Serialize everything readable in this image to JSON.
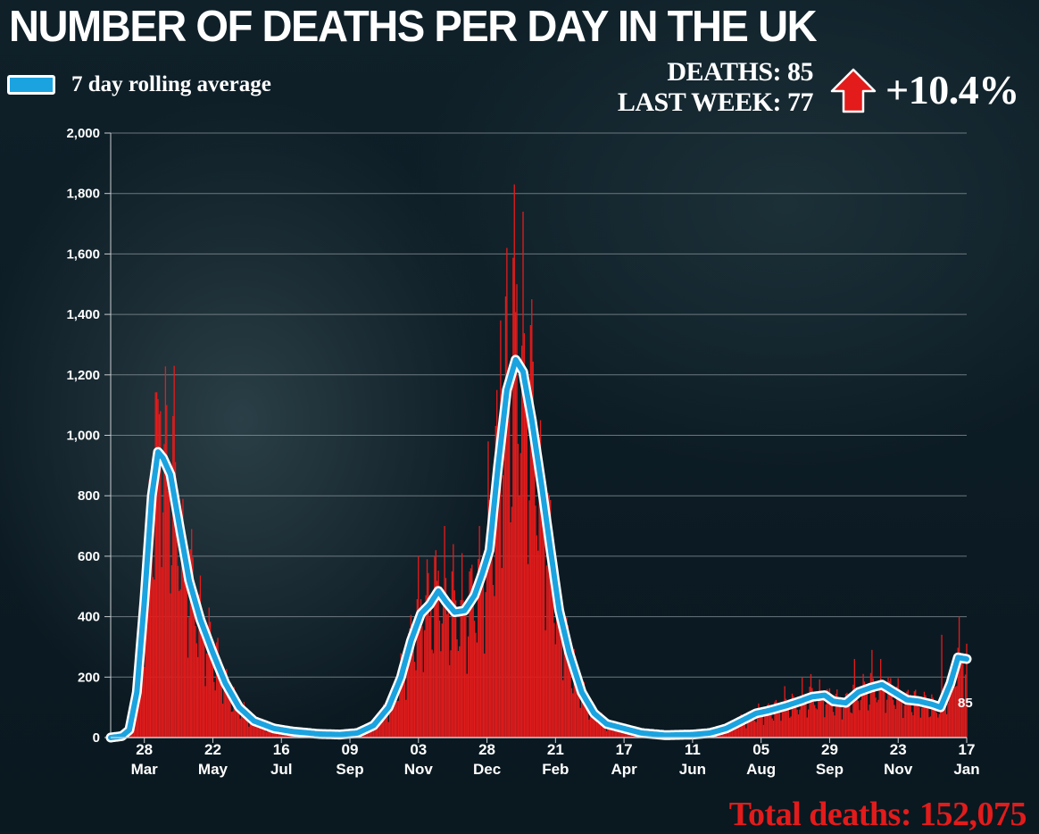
{
  "title": "NUMBER OF DEATHS PER DAY IN THE UK",
  "legend_label": "7 day rolling average",
  "stats": {
    "deaths_line": "DEATHS: 85",
    "last_week_line": "LAST WEEK: 77",
    "change": "+10.4%"
  },
  "total_deaths": "Total deaths: 152,075",
  "last_value_label": "85",
  "colors": {
    "bars": "#e31b1b",
    "line": "#1ba3e0",
    "line_outline": "#ffffff",
    "arrow": "#e31b1b",
    "total_text": "#e31b1b"
  },
  "icons": {
    "change_indicator": "red-up-arrow-icon"
  },
  "chart_data": {
    "type": "bar",
    "title": "NUMBER OF DEATHS PER DAY IN THE UK",
    "xlabel": "",
    "ylabel": "",
    "ylim": [
      0,
      2000
    ],
    "yticks": [
      "0",
      "200",
      "400",
      "600",
      "800",
      "1,000",
      "1,200",
      "1,400",
      "1,600",
      "1,800",
      "2,000"
    ],
    "yvalues": [
      0,
      200,
      400,
      600,
      800,
      1000,
      1200,
      1400,
      1600,
      1800,
      2000
    ],
    "x_start": "2020-03-01",
    "x_end": "2022-01-17",
    "xticks": [
      {
        "date": "2020-03-28",
        "day": "28",
        "month": "Mar"
      },
      {
        "date": "2020-05-22",
        "day": "22",
        "month": "May"
      },
      {
        "date": "2020-07-16",
        "day": "16",
        "month": "Jul"
      },
      {
        "date": "2020-09-09",
        "day": "09",
        "month": "Sep"
      },
      {
        "date": "2020-11-03",
        "day": "03",
        "month": "Nov"
      },
      {
        "date": "2020-12-28",
        "day": "28",
        "month": "Dec"
      },
      {
        "date": "2021-02-21",
        "day": "21",
        "month": "Feb"
      },
      {
        "date": "2021-04-17",
        "day": "17",
        "month": "Apr"
      },
      {
        "date": "2021-06-11",
        "day": "11",
        "month": "Jun"
      },
      {
        "date": "2021-08-05",
        "day": "05",
        "month": "Aug"
      },
      {
        "date": "2021-09-29",
        "day": "29",
        "month": "Sep"
      },
      {
        "date": "2021-11-23",
        "day": "23",
        "month": "Nov"
      },
      {
        "date": "2022-01-17",
        "day": "17",
        "month": "Jan"
      }
    ],
    "grid": true,
    "series": [
      {
        "name": "7 day rolling average",
        "type": "line",
        "points": [
          [
            "2020-03-01",
            0
          ],
          [
            "2020-03-10",
            5
          ],
          [
            "2020-03-16",
            25
          ],
          [
            "2020-03-22",
            150
          ],
          [
            "2020-03-28",
            450
          ],
          [
            "2020-04-03",
            800
          ],
          [
            "2020-04-08",
            945
          ],
          [
            "2020-04-12",
            925
          ],
          [
            "2020-04-18",
            870
          ],
          [
            "2020-04-26",
            680
          ],
          [
            "2020-05-03",
            520
          ],
          [
            "2020-05-12",
            390
          ],
          [
            "2020-05-22",
            280
          ],
          [
            "2020-06-01",
            180
          ],
          [
            "2020-06-12",
            100
          ],
          [
            "2020-06-24",
            55
          ],
          [
            "2020-07-10",
            30
          ],
          [
            "2020-07-25",
            20
          ],
          [
            "2020-08-15",
            12
          ],
          [
            "2020-09-01",
            10
          ],
          [
            "2020-09-15",
            15
          ],
          [
            "2020-09-28",
            40
          ],
          [
            "2020-10-10",
            100
          ],
          [
            "2020-10-20",
            200
          ],
          [
            "2020-10-28",
            320
          ],
          [
            "2020-11-05",
            410
          ],
          [
            "2020-11-12",
            440
          ],
          [
            "2020-11-19",
            485
          ],
          [
            "2020-11-25",
            450
          ],
          [
            "2020-12-02",
            415
          ],
          [
            "2020-12-10",
            420
          ],
          [
            "2020-12-18",
            470
          ],
          [
            "2020-12-24",
            540
          ],
          [
            "2020-12-30",
            620
          ],
          [
            "2021-01-06",
            900
          ],
          [
            "2021-01-13",
            1150
          ],
          [
            "2021-01-20",
            1250
          ],
          [
            "2021-01-26",
            1210
          ],
          [
            "2021-02-02",
            1050
          ],
          [
            "2021-02-10",
            830
          ],
          [
            "2021-02-17",
            620
          ],
          [
            "2021-02-24",
            420
          ],
          [
            "2021-03-04",
            280
          ],
          [
            "2021-03-14",
            150
          ],
          [
            "2021-03-24",
            80
          ],
          [
            "2021-04-03",
            45
          ],
          [
            "2021-04-17",
            30
          ],
          [
            "2021-05-01",
            15
          ],
          [
            "2021-05-20",
            8
          ],
          [
            "2021-06-11",
            10
          ],
          [
            "2021-06-25",
            15
          ],
          [
            "2021-07-08",
            30
          ],
          [
            "2021-07-20",
            55
          ],
          [
            "2021-08-01",
            80
          ],
          [
            "2021-08-12",
            90
          ],
          [
            "2021-08-25",
            105
          ],
          [
            "2021-09-05",
            120
          ],
          [
            "2021-09-15",
            135
          ],
          [
            "2021-09-25",
            140
          ],
          [
            "2021-10-02",
            120
          ],
          [
            "2021-10-12",
            115
          ],
          [
            "2021-10-22",
            150
          ],
          [
            "2021-11-01",
            165
          ],
          [
            "2021-11-10",
            175
          ],
          [
            "2021-11-20",
            150
          ],
          [
            "2021-11-30",
            125
          ],
          [
            "2021-12-10",
            120
          ],
          [
            "2021-12-20",
            110
          ],
          [
            "2021-12-27",
            100
          ],
          [
            "2022-01-04",
            180
          ],
          [
            "2022-01-10",
            265
          ],
          [
            "2022-01-17",
            260
          ]
        ]
      },
      {
        "name": "Daily deaths",
        "type": "bar",
        "spikes": [
          [
            "2020-04-08",
            1120
          ],
          [
            "2020-04-10",
            1080
          ],
          [
            "2020-04-15",
            1100
          ],
          [
            "2020-04-21",
            1230
          ],
          [
            "2020-04-28",
            790
          ],
          [
            "2020-05-05",
            690
          ],
          [
            "2020-05-19",
            430
          ],
          [
            "2020-05-26",
            330
          ],
          [
            "2020-11-03",
            600
          ],
          [
            "2020-11-10",
            590
          ],
          [
            "2020-11-17",
            620
          ],
          [
            "2020-11-24",
            700
          ],
          [
            "2020-12-01",
            640
          ],
          [
            "2020-12-08",
            610
          ],
          [
            "2020-12-15",
            560
          ],
          [
            "2020-12-22",
            700
          ],
          [
            "2020-12-29",
            980
          ],
          [
            "2021-01-05",
            1150
          ],
          [
            "2021-01-08",
            1380
          ],
          [
            "2021-01-13",
            1620
          ],
          [
            "2021-01-19",
            1830
          ],
          [
            "2021-01-21",
            1500
          ],
          [
            "2021-01-26",
            1740
          ],
          [
            "2021-02-02",
            1450
          ],
          [
            "2021-02-09",
            1050
          ],
          [
            "2021-02-16",
            800
          ],
          [
            "2021-02-23",
            550
          ],
          [
            "2021-08-24",
            170
          ],
          [
            "2021-09-07",
            200
          ],
          [
            "2021-09-14",
            210
          ],
          [
            "2021-10-19",
            260
          ],
          [
            "2021-11-02",
            290
          ],
          [
            "2021-11-09",
            260
          ],
          [
            "2021-12-28",
            340
          ],
          [
            "2022-01-11",
            400
          ]
        ]
      }
    ]
  }
}
